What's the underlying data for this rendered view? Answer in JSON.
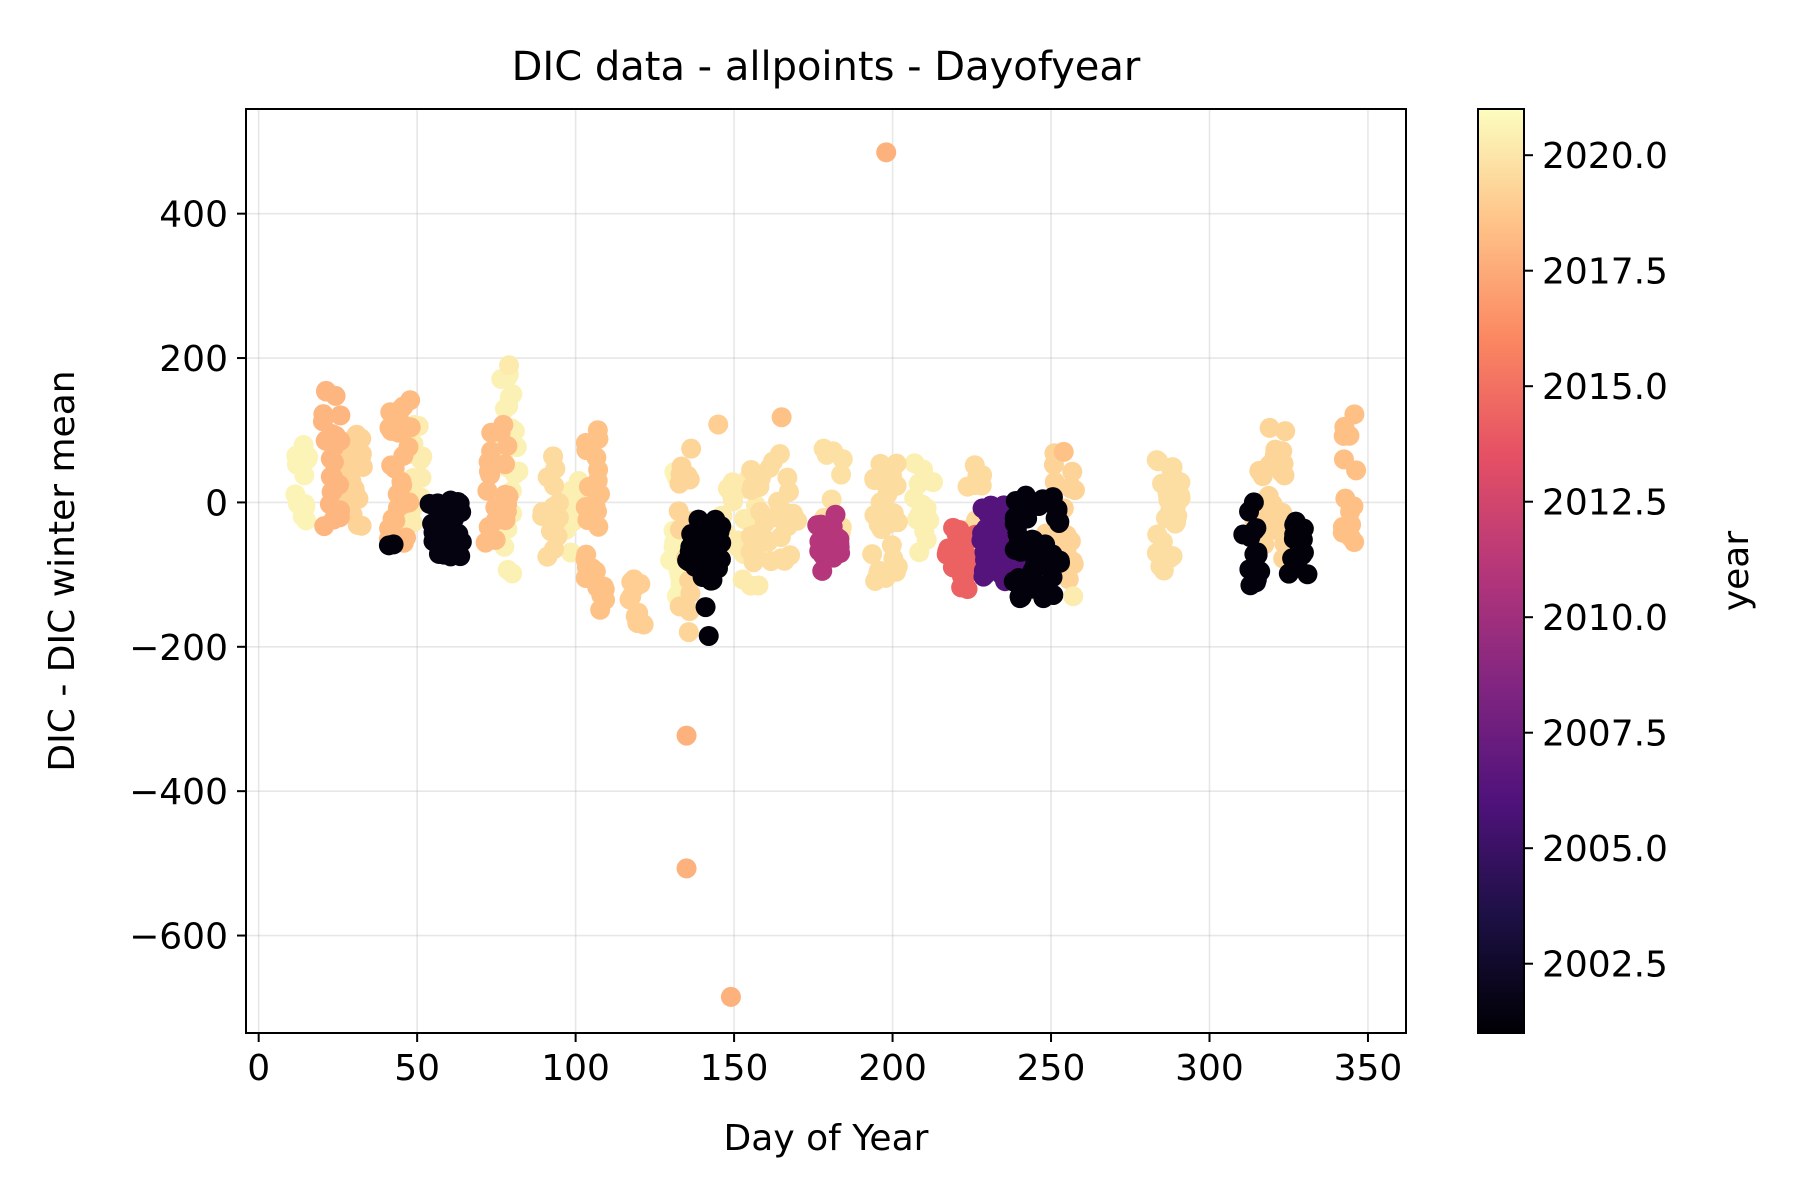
{
  "chart_data": {
    "type": "scatter",
    "title": "DIC data - allpoints - Dayofyear",
    "xlabel": "Day of Year",
    "ylabel": "DIC - DIC winter mean",
    "xlim": [
      -4,
      362
    ],
    "ylim": [
      -735,
      545
    ],
    "xticks": [
      0,
      50,
      100,
      150,
      200,
      250,
      300,
      350
    ],
    "xtick_labels": [
      "0",
      "50",
      "100",
      "150",
      "200",
      "250",
      "300",
      "350"
    ],
    "yticks": [
      -600,
      -400,
      -200,
      0,
      200,
      400
    ],
    "ytick_labels": [
      "−600",
      "−400",
      "−200",
      "0",
      "200",
      "400"
    ],
    "grid": true,
    "colormap": "magma",
    "colorbar": {
      "label": "year",
      "min": 2001,
      "max": 2021,
      "ticks": [
        2002.5,
        2005.0,
        2007.5,
        2010.0,
        2012.5,
        2015.0,
        2017.5,
        2020.0
      ],
      "tick_labels": [
        "2002.5",
        "2005.0",
        "2007.5",
        "2010.0",
        "2012.5",
        "2015.0",
        "2017.5",
        "2020.0"
      ]
    },
    "clusters": [
      {
        "x": [
          11,
          16
        ],
        "y": [
          -50,
          80
        ],
        "year": 2020.6,
        "n": 14
      },
      {
        "x": [
          20,
          26
        ],
        "y": [
          -40,
          160
        ],
        "year": 2018.0,
        "n": 26
      },
      {
        "x": [
          26,
          33
        ],
        "y": [
          -40,
          100
        ],
        "year": 2019.2,
        "n": 22
      },
      {
        "x": [
          41,
          48
        ],
        "y": [
          -60,
          150
        ],
        "year": 2018.2,
        "n": 28
      },
      {
        "x": [
          47,
          53
        ],
        "y": [
          -50,
          110
        ],
        "year": 2020.3,
        "n": 16
      },
      {
        "x": [
          41,
          43
        ],
        "y": [
          -60,
          -50
        ],
        "year": 2001.3,
        "n": 2
      },
      {
        "x": [
          53,
          65
        ],
        "y": [
          -75,
          5
        ],
        "year": 2001.5,
        "n": 32
      },
      {
        "x": [
          71,
          79
        ],
        "y": [
          -60,
          115
        ],
        "year": 2018.3,
        "n": 26
      },
      {
        "x": [
          76,
          82
        ],
        "y": [
          -100,
          190
        ],
        "year": 2020.5,
        "n": 26
      },
      {
        "x": [
          88,
          95
        ],
        "y": [
          -80,
          75
        ],
        "year": 2019.5,
        "n": 14
      },
      {
        "x": [
          97,
          102
        ],
        "y": [
          -70,
          30
        ],
        "year": 2020.4,
        "n": 12
      },
      {
        "x": [
          103,
          110
        ],
        "y": [
          -165,
          105
        ],
        "year": 2018.5,
        "n": 28
      },
      {
        "x": [
          117,
          122
        ],
        "y": [
          -170,
          -95
        ],
        "year": 2019.0,
        "n": 10
      },
      {
        "x": [
          129,
          134
        ],
        "y": [
          -150,
          70
        ],
        "year": 2020.6,
        "n": 14
      },
      {
        "x": [
          132,
          137
        ],
        "y": [
          -185,
          75
        ],
        "year": 2019.3,
        "n": 16
      },
      {
        "x": [
          135,
          146
        ],
        "y": [
          -110,
          -15
        ],
        "year": 2001.2,
        "n": 40
      },
      {
        "x": [
          146,
          158
        ],
        "y": [
          -120,
          35
        ],
        "year": 2020.2,
        "n": 26
      },
      {
        "x": [
          155,
          170
        ],
        "y": [
          -90,
          70
        ],
        "year": 2019.6,
        "n": 34
      },
      {
        "x": [
          176,
          184
        ],
        "y": [
          -95,
          -20
        ],
        "year": 2011.0,
        "n": 18
      },
      {
        "x": [
          176,
          186
        ],
        "y": [
          -80,
          90
        ],
        "year": 2019.8,
        "n": 12
      },
      {
        "x": [
          193,
          202
        ],
        "y": [
          -110,
          60
        ],
        "year": 2019.6,
        "n": 30
      },
      {
        "x": [
          206,
          213
        ],
        "y": [
          -70,
          70
        ],
        "year": 2020.4,
        "n": 14
      },
      {
        "x": [
          217,
          227
        ],
        "y": [
          -125,
          -30
        ],
        "year": 2014.3,
        "n": 22
      },
      {
        "x": [
          223,
          232
        ],
        "y": [
          -95,
          55
        ],
        "year": 2019.5,
        "n": 22
      },
      {
        "x": [
          228,
          240
        ],
        "y": [
          -110,
          0
        ],
        "year": 2006.3,
        "n": 64
      },
      {
        "x": [
          238,
          253
        ],
        "y": [
          -135,
          10
        ],
        "year": 2001.3,
        "n": 56
      },
      {
        "x": [
          243,
          258
        ],
        "y": [
          -130,
          75
        ],
        "year": 2019.2,
        "n": 22
      },
      {
        "x": [
          283,
          291
        ],
        "y": [
          -95,
          60
        ],
        "year": 2019.7,
        "n": 30
      },
      {
        "x": [
          310,
          316
        ],
        "y": [
          -115,
          0
        ],
        "year": 2001.3,
        "n": 16
      },
      {
        "x": [
          314,
          324
        ],
        "y": [
          -80,
          105
        ],
        "year": 2019.3,
        "n": 24
      },
      {
        "x": [
          325,
          331
        ],
        "y": [
          -100,
          -20
        ],
        "year": 2001.2,
        "n": 16
      },
      {
        "x": [
          342,
          347
        ],
        "y": [
          -55,
          145
        ],
        "year": 2018.4,
        "n": 14
      }
    ],
    "outliers": [
      {
        "x": 198,
        "y": 485,
        "year": 2017.8
      },
      {
        "x": 135,
        "y": -323,
        "year": 2017.8
      },
      {
        "x": 135,
        "y": -507,
        "year": 2017.8
      },
      {
        "x": 149,
        "y": -685,
        "year": 2017.8
      },
      {
        "x": 142,
        "y": -185,
        "year": 2001.2
      },
      {
        "x": 141,
        "y": -145,
        "year": 2001.2
      },
      {
        "x": 314,
        "y": 0,
        "year": 2001.2
      },
      {
        "x": 182,
        "y": -17,
        "year": 2011.0
      },
      {
        "x": 79,
        "y": 190,
        "year": 2020.2
      },
      {
        "x": 165,
        "y": 118,
        "year": 2018.5
      },
      {
        "x": 107,
        "y": 100,
        "year": 2018.5
      },
      {
        "x": 145,
        "y": 108,
        "year": 2019.0
      },
      {
        "x": 254,
        "y": 70,
        "year": 2018.5
      },
      {
        "x": 257,
        "y": -130,
        "year": 2020.3
      }
    ]
  }
}
